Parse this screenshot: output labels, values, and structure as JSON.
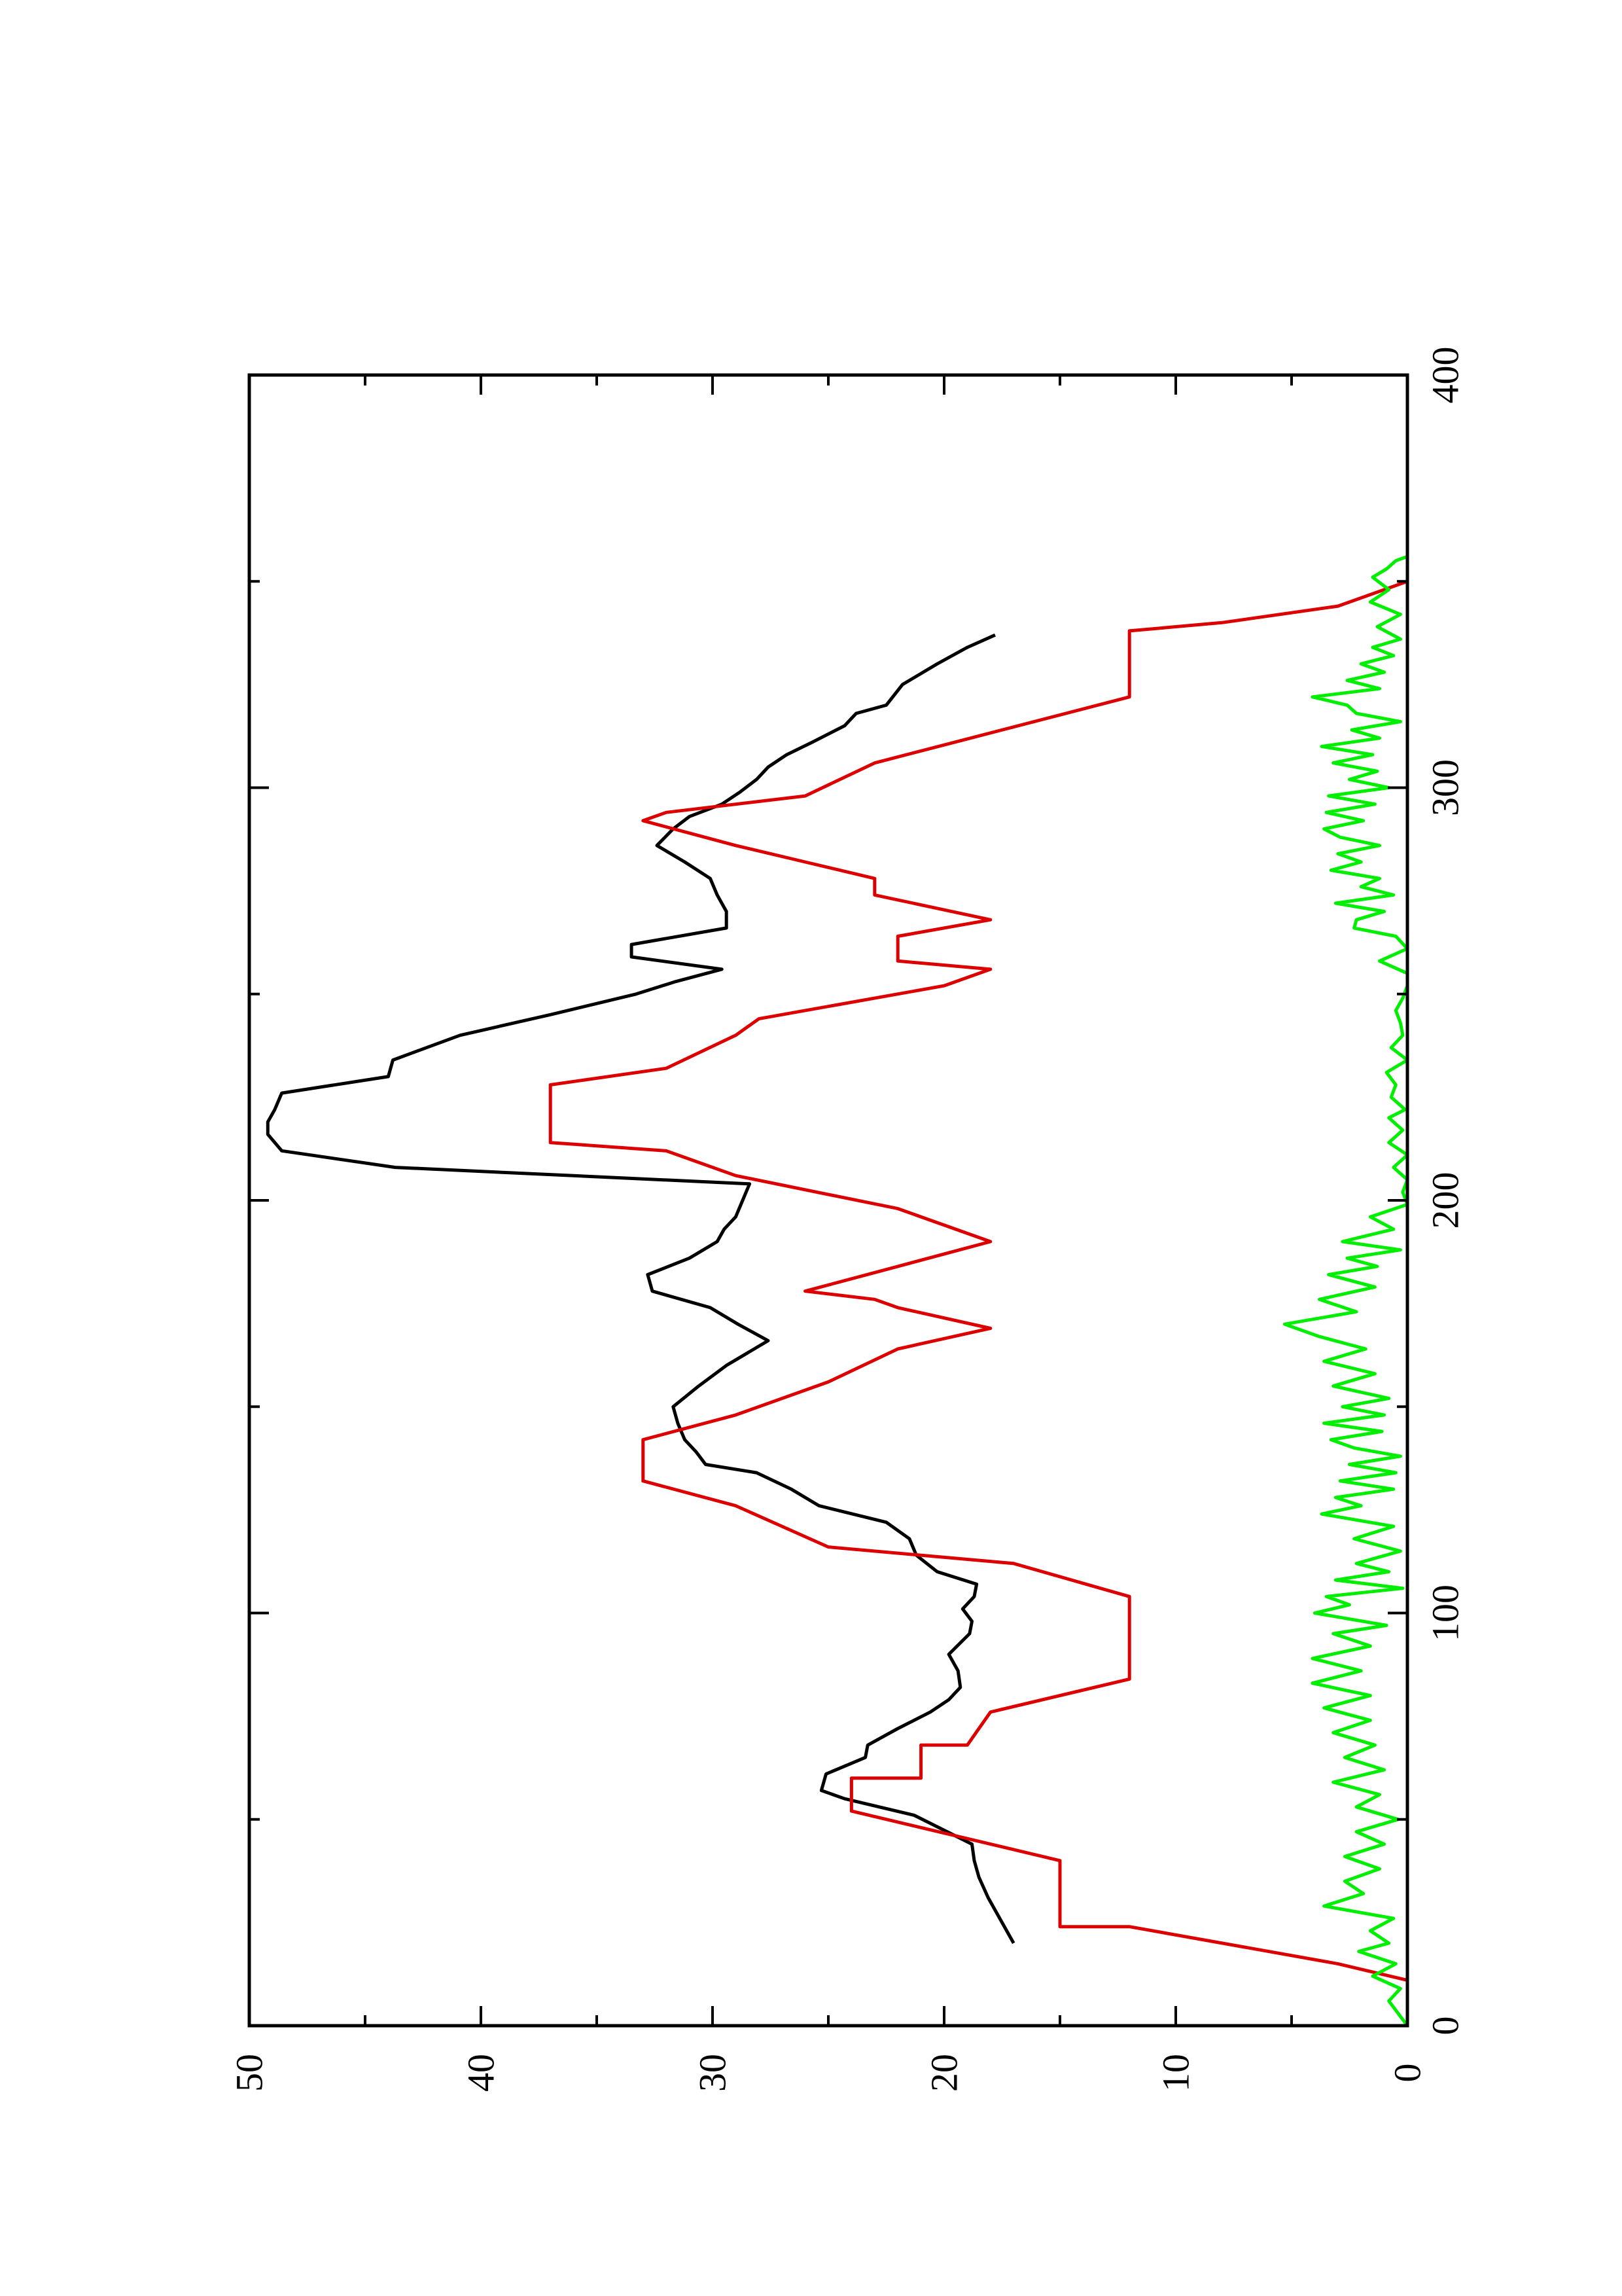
{
  "chart_data": {
    "type": "line",
    "title": "",
    "xlabel": "",
    "ylabel": "",
    "orientation": "rotated 90° counter-clockwise (landscape page printed in portrait)",
    "xlim": [
      0,
      400
    ],
    "ylim": [
      0,
      50
    ],
    "x_ticks": [
      "0",
      "100",
      "200",
      "300",
      "400"
    ],
    "y_ticks": [
      "0",
      "10",
      "20",
      "30",
      "40",
      "50"
    ],
    "x_minor_step": 50,
    "y_minor_step": 5,
    "grid": false,
    "legend": "none",
    "series": [
      {
        "color": "#000000",
        "points": [
          [
            20,
            17
          ],
          [
            26,
            17.6
          ],
          [
            31,
            18.1
          ],
          [
            36,
            18.5
          ],
          [
            40,
            18.7
          ],
          [
            44,
            18.8
          ],
          [
            51,
            21.3
          ],
          [
            55,
            24.3
          ],
          [
            57,
            25.3
          ],
          [
            61,
            25.1
          ],
          [
            65,
            23.4
          ],
          [
            68,
            23.3
          ],
          [
            72,
            22
          ],
          [
            76,
            20.6
          ],
          [
            79,
            19.8
          ],
          [
            82,
            19.3
          ],
          [
            86,
            19.4
          ],
          [
            90,
            19.8
          ],
          [
            95,
            18.9
          ],
          [
            98,
            18.8
          ],
          [
            101,
            19.2
          ],
          [
            104,
            18.7
          ],
          [
            107,
            18.6
          ],
          [
            110,
            20.3
          ],
          [
            114,
            21.2
          ],
          [
            118,
            21.5
          ],
          [
            122,
            22.5
          ],
          [
            126,
            25.4
          ],
          [
            130,
            26.6
          ],
          [
            134,
            28.1
          ],
          [
            136,
            30.3
          ],
          [
            139,
            30.7
          ],
          [
            142,
            31.2
          ],
          [
            146,
            31.5
          ],
          [
            150,
            31.7
          ],
          [
            155,
            30.6
          ],
          [
            160,
            29.4
          ],
          [
            166,
            27.6
          ],
          [
            170,
            28.9
          ],
          [
            174,
            30.1
          ],
          [
            178,
            32.6
          ],
          [
            182,
            32.8
          ],
          [
            186,
            31
          ],
          [
            190,
            29.8
          ],
          [
            193,
            29.5
          ],
          [
            196,
            29
          ],
          [
            200,
            28.7
          ],
          [
            204,
            28.4
          ],
          [
            208,
            43.7
          ],
          [
            212,
            48.6
          ],
          [
            216,
            49.2
          ],
          [
            219,
            49.2
          ],
          [
            222,
            48.9
          ],
          [
            226,
            48.6
          ],
          [
            230,
            44
          ],
          [
            234,
            43.8
          ],
          [
            240,
            40.9
          ],
          [
            245,
            37
          ],
          [
            250,
            33.3
          ],
          [
            253,
            31.6
          ],
          [
            256,
            29.6
          ],
          [
            259,
            33.5
          ],
          [
            262,
            33.5
          ],
          [
            266,
            29.4
          ],
          [
            270,
            29.4
          ],
          [
            274,
            29.8
          ],
          [
            278,
            30.1
          ],
          [
            282,
            31.2
          ],
          [
            286,
            32.4
          ],
          [
            290,
            31.7
          ],
          [
            293,
            31
          ],
          [
            296,
            29.6
          ],
          [
            299,
            28.8
          ],
          [
            302,
            28.1
          ],
          [
            305,
            27.6
          ],
          [
            308,
            26.8
          ],
          [
            311,
            25.7
          ],
          [
            315,
            24.3
          ],
          [
            318,
            23.8
          ],
          [
            320,
            22.5
          ],
          [
            325,
            21.8
          ],
          [
            330,
            20.3
          ],
          [
            334,
            19
          ],
          [
            337,
            17.8
          ]
        ]
      },
      {
        "color": "#dd0000",
        "points": [
          [
            0,
            0
          ],
          [
            11,
            0
          ],
          [
            15,
            3
          ],
          [
            24,
            12
          ],
          [
            24,
            15
          ],
          [
            40,
            15
          ],
          [
            52,
            24
          ],
          [
            60,
            24
          ],
          [
            60,
            21
          ],
          [
            68,
            21
          ],
          [
            68,
            19
          ],
          [
            76,
            18
          ],
          [
            84,
            12
          ],
          [
            96,
            12
          ],
          [
            104,
            12
          ],
          [
            112,
            17
          ],
          [
            116,
            25
          ],
          [
            126,
            29
          ],
          [
            132,
            33
          ],
          [
            142,
            33
          ],
          [
            148,
            29
          ],
          [
            156,
            25
          ],
          [
            164,
            22
          ],
          [
            169,
            18
          ],
          [
            174,
            22
          ],
          [
            176,
            23
          ],
          [
            178,
            26
          ],
          [
            184,
            22
          ],
          [
            190,
            18
          ],
          [
            198,
            22
          ],
          [
            206,
            29
          ],
          [
            212,
            32
          ],
          [
            214,
            37
          ],
          [
            228,
            37
          ],
          [
            232,
            32
          ],
          [
            240,
            29
          ],
          [
            244,
            28
          ],
          [
            252,
            20
          ],
          [
            256,
            18
          ],
          [
            258,
            22
          ],
          [
            264,
            22
          ],
          [
            268,
            18
          ],
          [
            274,
            23
          ],
          [
            278,
            23
          ],
          [
            282,
            26
          ],
          [
            286,
            29
          ],
          [
            292,
            33
          ],
          [
            294,
            32
          ],
          [
            298,
            26
          ],
          [
            306,
            23
          ],
          [
            322,
            12
          ],
          [
            338,
            12
          ],
          [
            340,
            8
          ],
          [
            344,
            3
          ],
          [
            350,
            0
          ],
          [
            400,
            0
          ]
        ]
      },
      {
        "color": "#00ee00",
        "points": [
          [
            0,
            0
          ],
          [
            3,
            0.4
          ],
          [
            6,
            0.8
          ],
          [
            9,
            0.3
          ],
          [
            12,
            1.5
          ],
          [
            15,
            0.5
          ],
          [
            18,
            2.1
          ],
          [
            20,
            0.8
          ],
          [
            23,
            1.6
          ],
          [
            26,
            0.6
          ],
          [
            29,
            3.6
          ],
          [
            32,
            1.9
          ],
          [
            35,
            2.7
          ],
          [
            38,
            1.2
          ],
          [
            41,
            2.7
          ],
          [
            44,
            1
          ],
          [
            47,
            2.2
          ],
          [
            50,
            0.4
          ],
          [
            53,
            2.2
          ],
          [
            56,
            1.2
          ],
          [
            59,
            3.2
          ],
          [
            62,
            1
          ],
          [
            65,
            2.7
          ],
          [
            68,
            1.4
          ],
          [
            71,
            3.2
          ],
          [
            74,
            1.6
          ],
          [
            77,
            3.6
          ],
          [
            80,
            1.6
          ],
          [
            83,
            4.1
          ],
          [
            86,
            2
          ],
          [
            89,
            4.1
          ],
          [
            92,
            1.6
          ],
          [
            95,
            3.2
          ],
          [
            97,
            0.9
          ],
          [
            100,
            4
          ],
          [
            102,
            2.5
          ],
          [
            104,
            3.5
          ],
          [
            106,
            0.2
          ],
          [
            108,
            3.1
          ],
          [
            110,
            0.8
          ],
          [
            112,
            2.2
          ],
          [
            115,
            0.3
          ],
          [
            118,
            2.3
          ],
          [
            121,
            0.6
          ],
          [
            124,
            3.7
          ],
          [
            126,
            2
          ],
          [
            128,
            3.1
          ],
          [
            130,
            0.6
          ],
          [
            132,
            2.9
          ],
          [
            134,
            0.5
          ],
          [
            136,
            2.5
          ],
          [
            138,
            0.3
          ],
          [
            140,
            2.3
          ],
          [
            142,
            3.3
          ],
          [
            144,
            1.1
          ],
          [
            146,
            3.6
          ],
          [
            148,
            1
          ],
          [
            150,
            2.8
          ],
          [
            152,
            0.8
          ],
          [
            155,
            3.2
          ],
          [
            158,
            1.4
          ],
          [
            161,
            3.6
          ],
          [
            164,
            1.8
          ],
          [
            167,
            3.8
          ],
          [
            170,
            5.3
          ],
          [
            173,
            2.2
          ],
          [
            176,
            3.8
          ],
          [
            179,
            1.4
          ],
          [
            182,
            3.4
          ],
          [
            184,
            1.3
          ],
          [
            186,
            2.6
          ],
          [
            188,
            0.3
          ],
          [
            190,
            2.8
          ],
          [
            193,
            0.6
          ],
          [
            196,
            1.6
          ],
          [
            199,
            0
          ],
          [
            202,
            0.2
          ],
          [
            205,
            0
          ],
          [
            208,
            0.6
          ],
          [
            211,
            0
          ],
          [
            214,
            0.8
          ],
          [
            217,
            0.2
          ],
          [
            220,
            0.8
          ],
          [
            222,
            0.1
          ],
          [
            225,
            0.7
          ],
          [
            228,
            0.5
          ],
          [
            231,
            0.9
          ],
          [
            234,
            0
          ],
          [
            237,
            0.7
          ],
          [
            240,
            0.2
          ],
          [
            243,
            0.3
          ],
          [
            246,
            0.5
          ],
          [
            249,
            0.2
          ],
          [
            252,
            0
          ],
          [
            255,
            0
          ],
          [
            258,
            1.2
          ],
          [
            261,
            0
          ],
          [
            264,
            0.5
          ],
          [
            266,
            2.3
          ],
          [
            268,
            2.2
          ],
          [
            270,
            1
          ],
          [
            272,
            3.1
          ],
          [
            274,
            0.6
          ],
          [
            276,
            2
          ],
          [
            278,
            1.2
          ],
          [
            280,
            3.3
          ],
          [
            282,
            2
          ],
          [
            284,
            3
          ],
          [
            286,
            1.2
          ],
          [
            288,
            2.9
          ],
          [
            290,
            3.6
          ],
          [
            292,
            1.9
          ],
          [
            294,
            3.5
          ],
          [
            296,
            1.4
          ],
          [
            298,
            3.4
          ],
          [
            300,
            0.8
          ],
          [
            302,
            2.5
          ],
          [
            304,
            1.3
          ],
          [
            306,
            3.2
          ],
          [
            308,
            1.5
          ],
          [
            310,
            3.7
          ],
          [
            312,
            1.2
          ],
          [
            314,
            2.4
          ],
          [
            316,
            0.3
          ],
          [
            318,
            2.2
          ],
          [
            320,
            2.6
          ],
          [
            322,
            4.1
          ],
          [
            324,
            1.2
          ],
          [
            326,
            2.6
          ],
          [
            328,
            1
          ],
          [
            330,
            2
          ],
          [
            332,
            0.6
          ],
          [
            334,
            1.5
          ],
          [
            336,
            0.3
          ],
          [
            339,
            1.3
          ],
          [
            342,
            0.3
          ],
          [
            345,
            1.6
          ],
          [
            348,
            0.8
          ],
          [
            351,
            1.5
          ],
          [
            353,
            0.9
          ],
          [
            355,
            0.5
          ],
          [
            356,
            0
          ]
        ]
      }
    ]
  }
}
